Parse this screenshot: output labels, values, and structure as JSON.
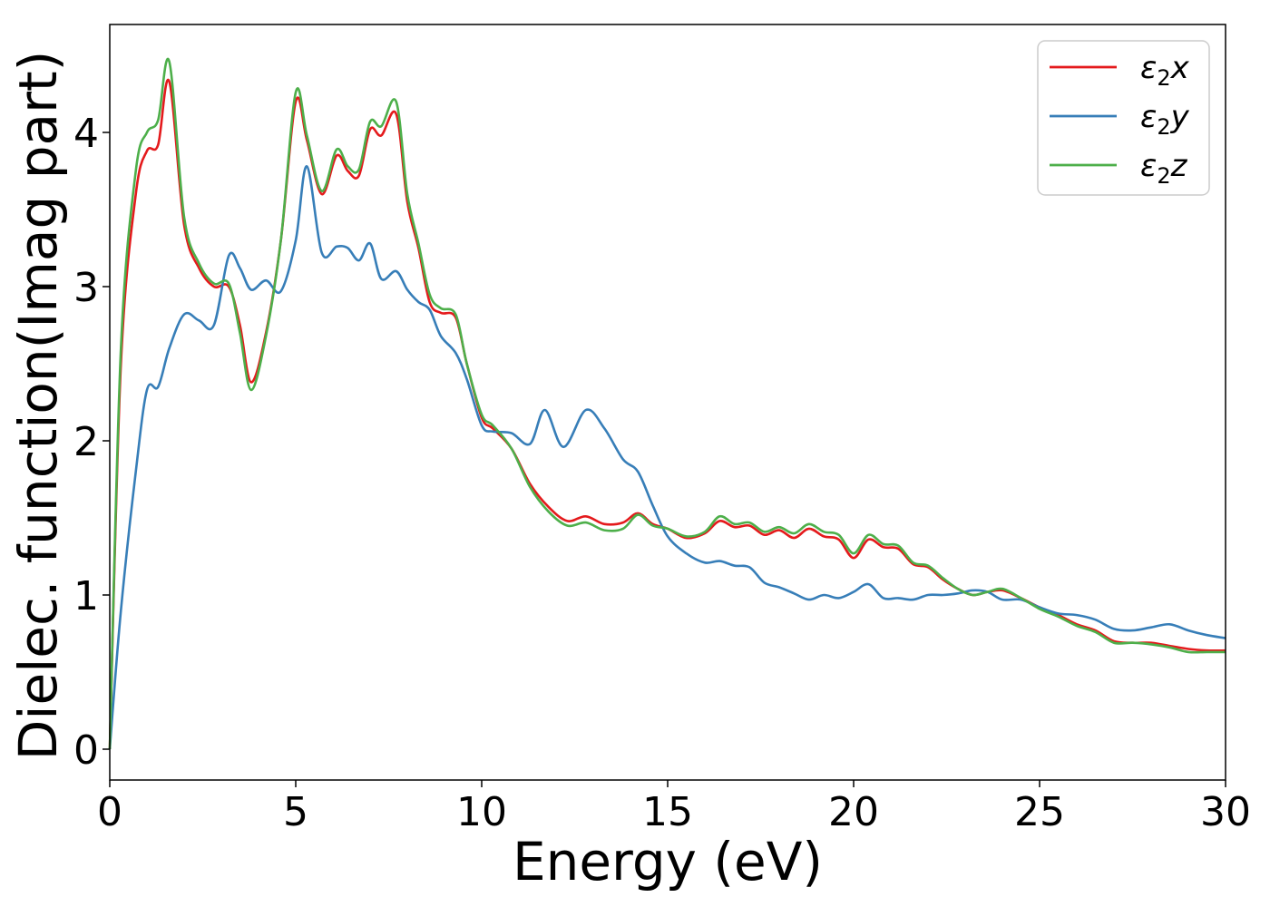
{
  "chart_data": {
    "type": "line",
    "title": "",
    "xlabel": "Energy (eV)",
    "ylabel": "Dielec. function(Imag part)",
    "xlim": [
      0,
      30
    ],
    "ylim": [
      -0.2,
      4.7
    ],
    "xticks": [
      0,
      5,
      10,
      15,
      20,
      25,
      30
    ],
    "yticks": [
      0,
      1,
      2,
      3,
      4
    ],
    "xtick_labels": [
      "0",
      "5",
      "10",
      "15",
      "20",
      "25",
      "30"
    ],
    "ytick_labels": [
      "0",
      "1",
      "2",
      "3",
      "4"
    ],
    "grid": false,
    "legend_position": "top-right",
    "series": [
      {
        "name": "ε2x",
        "label_base": "ε",
        "label_sub": "2",
        "label_var": "x",
        "color": "#e41a1c",
        "x": [
          0,
          0.3,
          0.7,
          1.0,
          1.3,
          1.6,
          2.0,
          2.4,
          2.8,
          3.2,
          3.5,
          3.8,
          4.2,
          4.6,
          5.0,
          5.3,
          5.7,
          6.1,
          6.4,
          6.7,
          7.0,
          7.3,
          7.7,
          8.0,
          8.3,
          8.6,
          8.9,
          9.3,
          9.6,
          10.0,
          10.3,
          10.8,
          11.3,
          11.8,
          12.3,
          12.8,
          13.3,
          13.8,
          14.2,
          14.6,
          15.0,
          15.5,
          16.0,
          16.4,
          16.8,
          17.2,
          17.6,
          18.0,
          18.4,
          18.8,
          19.2,
          19.6,
          20.0,
          20.4,
          20.8,
          21.2,
          21.6,
          22.0,
          22.4,
          22.8,
          23.2,
          23.6,
          24.0,
          24.5,
          25.0,
          25.5,
          26.0,
          26.5,
          27.0,
          27.5,
          28.0,
          28.5,
          29.0,
          29.5,
          30.0
        ],
        "y": [
          0.0,
          2.5,
          3.6,
          3.88,
          3.92,
          4.33,
          3.4,
          3.12,
          3.0,
          3.0,
          2.75,
          2.38,
          2.7,
          3.3,
          4.2,
          3.95,
          3.6,
          3.85,
          3.75,
          3.72,
          4.02,
          3.98,
          4.12,
          3.55,
          3.25,
          2.9,
          2.83,
          2.8,
          2.5,
          2.15,
          2.08,
          1.95,
          1.72,
          1.57,
          1.48,
          1.51,
          1.46,
          1.47,
          1.53,
          1.46,
          1.43,
          1.37,
          1.4,
          1.48,
          1.44,
          1.45,
          1.39,
          1.42,
          1.37,
          1.43,
          1.38,
          1.36,
          1.24,
          1.36,
          1.31,
          1.3,
          1.2,
          1.18,
          1.1,
          1.04,
          1.0,
          1.02,
          1.03,
          0.98,
          0.92,
          0.87,
          0.81,
          0.77,
          0.7,
          0.69,
          0.69,
          0.67,
          0.65,
          0.64,
          0.64
        ]
      },
      {
        "name": "ε2y",
        "label_base": "ε",
        "label_sub": "2",
        "label_var": "y",
        "color": "#377eb8",
        "x": [
          0,
          0.3,
          0.7,
          1.0,
          1.3,
          1.6,
          2.0,
          2.4,
          2.8,
          3.2,
          3.5,
          3.8,
          4.2,
          4.6,
          5.0,
          5.3,
          5.7,
          6.1,
          6.4,
          6.7,
          7.0,
          7.3,
          7.7,
          8.0,
          8.3,
          8.6,
          8.9,
          9.3,
          9.6,
          10.0,
          10.3,
          10.8,
          11.3,
          11.7,
          12.2,
          12.8,
          13.3,
          13.8,
          14.2,
          14.6,
          15.0,
          15.5,
          16.0,
          16.4,
          16.8,
          17.2,
          17.6,
          18.0,
          18.4,
          18.8,
          19.2,
          19.6,
          20.0,
          20.4,
          20.8,
          21.2,
          21.6,
          22.0,
          22.4,
          22.8,
          23.2,
          23.6,
          24.0,
          24.5,
          25.0,
          25.5,
          26.0,
          26.5,
          27.0,
          27.5,
          28.0,
          28.5,
          29.0,
          29.5,
          30.0
        ],
        "y": [
          0.0,
          0.9,
          1.8,
          2.33,
          2.35,
          2.6,
          2.82,
          2.78,
          2.75,
          3.2,
          3.12,
          2.98,
          3.04,
          2.97,
          3.3,
          3.78,
          3.22,
          3.26,
          3.25,
          3.17,
          3.28,
          3.05,
          3.1,
          2.98,
          2.9,
          2.85,
          2.68,
          2.57,
          2.4,
          2.1,
          2.06,
          2.05,
          1.98,
          2.2,
          1.96,
          2.2,
          2.08,
          1.88,
          1.8,
          1.58,
          1.38,
          1.27,
          1.21,
          1.22,
          1.19,
          1.18,
          1.08,
          1.05,
          1.01,
          0.97,
          1.0,
          0.98,
          1.02,
          1.07,
          0.98,
          0.98,
          0.97,
          1.0,
          1.0,
          1.01,
          1.03,
          1.02,
          0.97,
          0.97,
          0.92,
          0.88,
          0.87,
          0.84,
          0.78,
          0.77,
          0.79,
          0.81,
          0.77,
          0.74,
          0.72
        ]
      },
      {
        "name": "ε2z",
        "label_base": "ε",
        "label_sub": "2",
        "label_var": "z",
        "color": "#4daf4a",
        "x": [
          0,
          0.3,
          0.7,
          1.0,
          1.3,
          1.6,
          2.0,
          2.4,
          2.8,
          3.2,
          3.5,
          3.8,
          4.2,
          4.6,
          5.0,
          5.3,
          5.7,
          6.1,
          6.4,
          6.7,
          7.0,
          7.3,
          7.7,
          8.0,
          8.3,
          8.6,
          8.9,
          9.3,
          9.6,
          10.0,
          10.3,
          10.8,
          11.3,
          11.8,
          12.3,
          12.8,
          13.3,
          13.8,
          14.2,
          14.6,
          15.0,
          15.5,
          16.0,
          16.4,
          16.8,
          17.2,
          17.6,
          18.0,
          18.4,
          18.8,
          19.2,
          19.6,
          20.0,
          20.4,
          20.8,
          21.2,
          21.6,
          22.0,
          22.4,
          22.8,
          23.2,
          23.6,
          24.0,
          24.5,
          25.0,
          25.5,
          26.0,
          26.5,
          27.0,
          27.5,
          28.0,
          28.5,
          29.0,
          29.5,
          30.0
        ],
        "y": [
          0.0,
          2.6,
          3.75,
          4.0,
          4.08,
          4.46,
          3.45,
          3.15,
          3.02,
          3.02,
          2.7,
          2.33,
          2.68,
          3.3,
          4.26,
          3.98,
          3.62,
          3.89,
          3.78,
          3.76,
          4.07,
          4.04,
          4.2,
          3.6,
          3.28,
          2.95,
          2.86,
          2.82,
          2.5,
          2.17,
          2.1,
          1.95,
          1.7,
          1.54,
          1.45,
          1.47,
          1.42,
          1.43,
          1.52,
          1.45,
          1.43,
          1.38,
          1.41,
          1.51,
          1.46,
          1.47,
          1.41,
          1.44,
          1.4,
          1.46,
          1.41,
          1.39,
          1.27,
          1.39,
          1.33,
          1.32,
          1.21,
          1.19,
          1.11,
          1.04,
          1.0,
          1.02,
          1.04,
          0.98,
          0.91,
          0.86,
          0.8,
          0.76,
          0.69,
          0.69,
          0.68,
          0.66,
          0.63,
          0.63,
          0.63
        ]
      }
    ]
  }
}
